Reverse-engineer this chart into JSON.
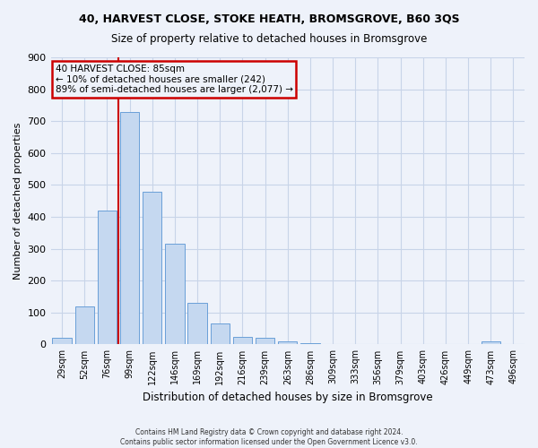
{
  "title1": "40, HARVEST CLOSE, STOKE HEATH, BROMSGROVE, B60 3QS",
  "title2": "Size of property relative to detached houses in Bromsgrove",
  "xlabel": "Distribution of detached houses by size in Bromsgrove",
  "ylabel": "Number of detached properties",
  "categories": [
    "29sqm",
    "52sqm",
    "76sqm",
    "99sqm",
    "122sqm",
    "146sqm",
    "169sqm",
    "192sqm",
    "216sqm",
    "239sqm",
    "263sqm",
    "286sqm",
    "309sqm",
    "333sqm",
    "356sqm",
    "379sqm",
    "403sqm",
    "426sqm",
    "449sqm",
    "473sqm",
    "496sqm"
  ],
  "values": [
    20,
    120,
    420,
    730,
    480,
    315,
    130,
    65,
    25,
    22,
    10,
    5,
    0,
    0,
    0,
    0,
    0,
    0,
    0,
    10,
    0
  ],
  "bar_color": "#c5d8f0",
  "bar_edge_color": "#6a9fd8",
  "grid_color": "#c8d4e8",
  "background_color": "#eef2fa",
  "vline_color": "#cc0000",
  "annotation_text": "40 HARVEST CLOSE: 85sqm\n← 10% of detached houses are smaller (242)\n89% of semi-detached houses are larger (2,077) →",
  "annotation_box_color": "#cc0000",
  "ylim": [
    0,
    900
  ],
  "yticks": [
    0,
    100,
    200,
    300,
    400,
    500,
    600,
    700,
    800,
    900
  ],
  "footer1": "Contains HM Land Registry data © Crown copyright and database right 2024.",
  "footer2": "Contains public sector information licensed under the Open Government Licence v3.0."
}
